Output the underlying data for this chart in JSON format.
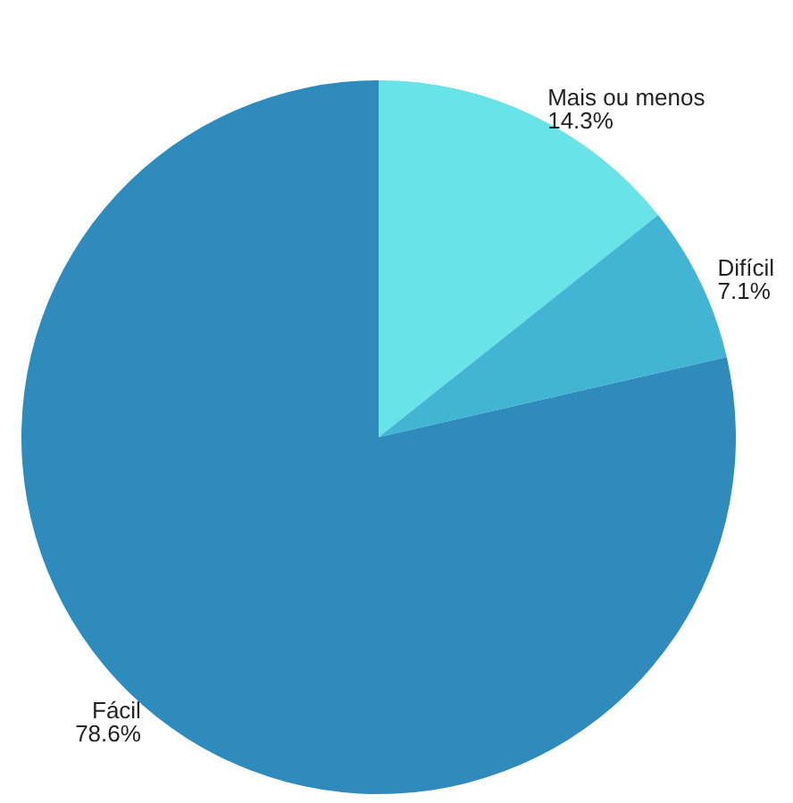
{
  "chart_data": {
    "type": "pie",
    "categories": [
      "Mais ou menos",
      "Difícil",
      "Fácil"
    ],
    "values": [
      14.3,
      7.1,
      78.6
    ],
    "value_labels": [
      "14.3%",
      "7.1%",
      "78.6%"
    ],
    "colors": [
      "#68e3e8",
      "#42b4d4",
      "#2e8bbb"
    ],
    "legend": false
  }
}
